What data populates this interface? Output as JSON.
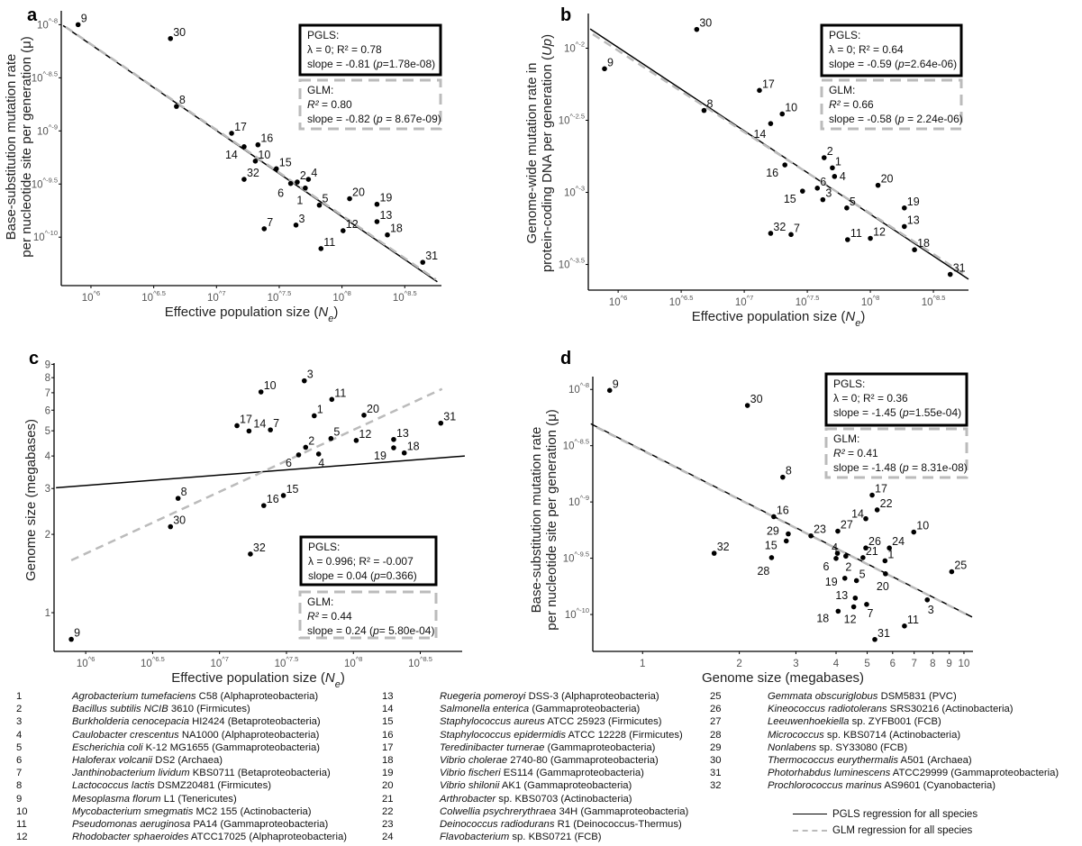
{
  "colors": {
    "pgls": "#000000",
    "glm": "#bbbbbb",
    "points": "#000000"
  },
  "chart_data": [
    {
      "panel": "a",
      "type": "scatter",
      "x_scale": "log",
      "y_scale": "log",
      "xlabel": {
        "pre": "Effective population size (",
        "var": "N",
        "sub": "e",
        "post": ")"
      },
      "ylabel": [
        {
          "pre": "Base-substitution mutation rate"
        },
        {
          "pre": "per nucleotide site per generation (μ)"
        }
      ],
      "xlim": [
        580000.0,
        620000000.0
      ],
      "ylim": [
        3.5e-11,
        1.35e-08
      ],
      "x_ticks": [
        "10^6",
        "10^6.5",
        "10^7",
        "10^7.5",
        "10^8",
        "10^8.5"
      ],
      "y_ticks": [
        "10^-8",
        "10^-8.5",
        "10^-9",
        "10^-9.5",
        "10^-10"
      ],
      "points": [
        {
          "id": "9",
          "x": 790000.0,
          "y": 1e-08
        },
        {
          "id": "30",
          "x": 4300000.0,
          "y": 7.4e-09
        },
        {
          "id": "8",
          "x": 4800000.0,
          "y": 1.7e-09
        },
        {
          "id": "17",
          "x": 13200000.0,
          "y": 9.5e-10
        },
        {
          "id": "14",
          "x": 16600000.0,
          "y": 7.1e-10
        },
        {
          "id": "16",
          "x": 21400000.0,
          "y": 7.4e-10
        },
        {
          "id": "10",
          "x": 20400000.0,
          "y": 5.2e-10
        },
        {
          "id": "15",
          "x": 30000000.0,
          "y": 4.4e-10
        },
        {
          "id": "32",
          "x": 16600000.0,
          "y": 3.5e-10
        },
        {
          "id": "2",
          "x": 44000000.0,
          "y": 3.3e-10
        },
        {
          "id": "4",
          "x": 54000000.0,
          "y": 3.5e-10
        },
        {
          "id": "6",
          "x": 39000000.0,
          "y": 3.2e-10
        },
        {
          "id": "1",
          "x": 51000000.0,
          "y": 2.9e-10
        },
        {
          "id": "5",
          "x": 66000000.0,
          "y": 2e-10
        },
        {
          "id": "20",
          "x": 115000000.0,
          "y": 2.3e-10
        },
        {
          "id": "19",
          "x": 190000000.0,
          "y": 2.04e-10
        },
        {
          "id": "3",
          "x": 43000000.0,
          "y": 1.3e-10
        },
        {
          "id": "7",
          "x": 24000000.0,
          "y": 1.2e-10
        },
        {
          "id": "13",
          "x": 190000000.0,
          "y": 1.4e-10
        },
        {
          "id": "12",
          "x": 102000000.0,
          "y": 1.15e-10
        },
        {
          "id": "18",
          "x": 230000000.0,
          "y": 1.05e-10
        },
        {
          "id": "11",
          "x": 68000000.0,
          "y": 7.8e-11
        },
        {
          "id": "31",
          "x": 440000000.0,
          "y": 5.8e-11
        }
      ],
      "regressions": {
        "pgls": {
          "x": [
            600000.0,
            575000000.0
          ],
          "y": [
            9.8e-09,
            3.8e-11
          ]
        },
        "glm": {
          "x": [
            630000.0,
            560000000.0
          ],
          "y": [
            9.5e-09,
            4e-11
          ]
        }
      },
      "stats": {
        "pgls": {
          "title": "PGLS:",
          "line1": "λ = 0; R² = 0.78",
          "slope_pre": "slope = -0.81 (",
          "p": "p",
          "slope_post": "=1.78e-08)"
        },
        "glm": {
          "title": "GLM:",
          "r2": "R²",
          "r2_val": " = 0.80",
          "slope_pre": "slope = -0.82 (",
          "p": "p",
          "slope_post": " = 8.67e-09)"
        }
      }
    },
    {
      "panel": "b",
      "type": "scatter",
      "x_scale": "log",
      "y_scale": "log",
      "xlabel": {
        "pre": "Effective population size (",
        "var": "N",
        "sub": "e",
        "post": ")"
      },
      "ylabel": [
        {
          "pre": "Genome-wide mutation rate in"
        },
        {
          "pre": "protein-coding DNA per generation (",
          "var": "Up",
          "post": ")"
        }
      ],
      "xlim": [
        580000.0,
        600000000.0
      ],
      "ylim": [
        0.00021,
        0.0174
      ],
      "x_ticks": [
        "10^6",
        "10^6.5",
        "10^7",
        "10^7.5",
        "10^8",
        "10^8.5"
      ],
      "y_ticks": [
        "10^-2",
        "10^-2.5",
        "10^-3",
        "10^-3.5"
      ],
      "points": [
        {
          "id": "9",
          "x": 780000.0,
          "y": 0.0072
        },
        {
          "id": "30",
          "x": 4200000.0,
          "y": 0.0135
        },
        {
          "id": "17",
          "x": 13200000.0,
          "y": 0.0051
        },
        {
          "id": "8",
          "x": 4800000.0,
          "y": 0.0037
        },
        {
          "id": "10",
          "x": 20000000.0,
          "y": 0.0035
        },
        {
          "id": "14",
          "x": 16200000.0,
          "y": 0.003
        },
        {
          "id": "2",
          "x": 43000000.0,
          "y": 0.00174
        },
        {
          "id": "16",
          "x": 21000000.0,
          "y": 0.00155
        },
        {
          "id": "1",
          "x": 50000000.0,
          "y": 0.00148
        },
        {
          "id": "4",
          "x": 52000000.0,
          "y": 0.00129
        },
        {
          "id": "20",
          "x": 115000000.0,
          "y": 0.00112
        },
        {
          "id": "6",
          "x": 38000000.0,
          "y": 0.00107
        },
        {
          "id": "15",
          "x": 29000000.0,
          "y": 0.00102
        },
        {
          "id": "3",
          "x": 42000000.0,
          "y": 0.00089
        },
        {
          "id": "5",
          "x": 65000000.0,
          "y": 0.00078
        },
        {
          "id": "19",
          "x": 186000000.0,
          "y": 0.00078
        },
        {
          "id": "13",
          "x": 186000000.0,
          "y": 0.00058
        },
        {
          "id": "32",
          "x": 16200000.0,
          "y": 0.00052
        },
        {
          "id": "7",
          "x": 23500000.0,
          "y": 0.00051
        },
        {
          "id": "11",
          "x": 66000000.0,
          "y": 0.00047
        },
        {
          "id": "12",
          "x": 100000000.0,
          "y": 0.00048
        },
        {
          "id": "18",
          "x": 224000000.0,
          "y": 0.0004
        },
        {
          "id": "31",
          "x": 430000000.0,
          "y": 0.00027
        }
      ],
      "regressions": {
        "pgls": {
          "x": [
            600000.0,
            600000000.0
          ],
          "y": [
            0.0136,
            0.00025
          ]
        },
        "glm": {
          "x": [
            630000.0,
            560000000.0
          ],
          "y": [
            0.0125,
            0.00027
          ]
        }
      },
      "stats": {
        "pgls": {
          "title": "PGLS:",
          "line1": "λ = 0; R² = 0.64",
          "slope_pre": "slope = -0.59 (",
          "p": "p",
          "slope_post": "=2.64e-06)"
        },
        "glm": {
          "title": "GLM:",
          "r2": "R²",
          "r2_val": " = 0.66",
          "slope_pre": "slope = -0.58 (",
          "p": "p",
          "slope_post": " = 2.24e-06)"
        }
      }
    },
    {
      "panel": "c",
      "type": "scatter",
      "x_scale": "log",
      "y_scale": "log",
      "xlabel": {
        "pre": "Effective population size (",
        "var": "N",
        "sub": "e",
        "post": ")"
      },
      "ylabel": [
        {
          "pre": "Genome size (megabases)"
        }
      ],
      "xlim": [
        580000.0,
        650000000.0
      ],
      "ylim": [
        0.71,
        9.1
      ],
      "x_ticks": [
        "10^6",
        "10^6.5",
        "10^7",
        "10^7.5",
        "10^8",
        "10^8.5"
      ],
      "y_ticks": [
        "1",
        "2",
        "3",
        "4",
        "5",
        "6",
        "7",
        "8",
        "9"
      ],
      "points": [
        {
          "id": "9",
          "x": 780000.0,
          "y": 0.79
        },
        {
          "id": "30",
          "x": 4300000.0,
          "y": 2.14
        },
        {
          "id": "8",
          "x": 4900000.0,
          "y": 2.75
        },
        {
          "id": "32",
          "x": 17000000.0,
          "y": 1.68
        },
        {
          "id": "16",
          "x": 21400000.0,
          "y": 2.58
        },
        {
          "id": "15",
          "x": 30000000.0,
          "y": 2.82
        },
        {
          "id": "17",
          "x": 13500000.0,
          "y": 5.23
        },
        {
          "id": "14",
          "x": 16600000.0,
          "y": 4.99
        },
        {
          "id": "7",
          "x": 24000000.0,
          "y": 5.04
        },
        {
          "id": "10",
          "x": 20400000.0,
          "y": 7.05
        },
        {
          "id": "3",
          "x": 43000000.0,
          "y": 7.78
        },
        {
          "id": "11",
          "x": 69000000.0,
          "y": 6.6
        },
        {
          "id": "1",
          "x": 51000000.0,
          "y": 5.71
        },
        {
          "id": "20",
          "x": 120000000.0,
          "y": 5.74
        },
        {
          "id": "31",
          "x": 450000000.0,
          "y": 5.35
        },
        {
          "id": "5",
          "x": 68000000.0,
          "y": 4.67
        },
        {
          "id": "12",
          "x": 105000000.0,
          "y": 4.59
        },
        {
          "id": "13",
          "x": 200000000.0,
          "y": 4.63
        },
        {
          "id": "19",
          "x": 200000000.0,
          "y": 4.3
        },
        {
          "id": "18",
          "x": 240000000.0,
          "y": 4.11
        },
        {
          "id": "2",
          "x": 44000000.0,
          "y": 4.32
        },
        {
          "id": "4",
          "x": 55000000.0,
          "y": 4.07
        },
        {
          "id": "6",
          "x": 39000000.0,
          "y": 4.04
        }
      ],
      "regressions": {
        "pgls": {
          "x": [
            600000.0,
            680000000.0
          ],
          "y": [
            3.02,
            4.0
          ]
        },
        "glm": {
          "x": [
            780000.0,
            460000000.0
          ],
          "y": [
            1.59,
            7.24
          ]
        }
      },
      "stats": {
        "pgls": {
          "title": "PGLS:",
          "line1": "λ = 0.996; R² = -0.007",
          "slope_pre": "slope = 0.04  (",
          "p": "p",
          "slope_post": "=0.366)"
        },
        "glm": {
          "title": "GLM:",
          "r2": "R²",
          "r2_val": " = 0.44",
          "slope_pre": "slope = 0.24  (",
          "p": "p",
          "slope_post": "= 5.80e-04)"
        }
      }
    },
    {
      "panel": "d",
      "type": "scatter",
      "x_scale": "log",
      "y_scale": "log",
      "xlabel": {
        "pre": "Genome size (megabases)"
      },
      "ylabel": [
        {
          "pre": "Base-substitution mutation rate"
        },
        {
          "pre": "per nucleotide site per generation (μ)"
        }
      ],
      "xlim": [
        0.7,
        10.67
      ],
      "ylim": [
        4.7e-11,
        1.3e-08
      ],
      "x_ticks": [
        "1",
        "2",
        "3",
        "4",
        "5",
        "6",
        "7",
        "8",
        "9",
        "10"
      ],
      "y_ticks": [
        "10^-8",
        "10^-8.5",
        "10^-9",
        "10^-9.5",
        "10^-10"
      ],
      "points": [
        {
          "id": "9",
          "x": 0.79,
          "y": 9.8e-09
        },
        {
          "id": "30",
          "x": 2.12,
          "y": 7.2e-09
        },
        {
          "id": "8",
          "x": 2.73,
          "y": 1.66e-09
        },
        {
          "id": "17",
          "x": 5.18,
          "y": 1.15e-09
        },
        {
          "id": "22",
          "x": 5.37,
          "y": 8.5e-10
        },
        {
          "id": "14",
          "x": 4.95,
          "y": 7.1e-10
        },
        {
          "id": "16",
          "x": 2.56,
          "y": 7.4e-10
        },
        {
          "id": "29",
          "x": 2.84,
          "y": 5.2e-10
        },
        {
          "id": "23",
          "x": 3.34,
          "y": 5e-10
        },
        {
          "id": "27",
          "x": 4.05,
          "y": 5.5e-10
        },
        {
          "id": "10",
          "x": 6.98,
          "y": 5.4e-10
        },
        {
          "id": "15",
          "x": 2.8,
          "y": 4.5e-10
        },
        {
          "id": "26",
          "x": 4.95,
          "y": 3.9e-10
        },
        {
          "id": "24",
          "x": 5.86,
          "y": 3.9e-10
        },
        {
          "id": "32",
          "x": 1.67,
          "y": 3.5e-10
        },
        {
          "id": "4",
          "x": 4.04,
          "y": 3.5e-10
        },
        {
          "id": "28",
          "x": 2.52,
          "y": 3.2e-10
        },
        {
          "id": "6",
          "x": 4.0,
          "y": 3.15e-10
        },
        {
          "id": "2",
          "x": 4.29,
          "y": 3.3e-10
        },
        {
          "id": "21",
          "x": 4.85,
          "y": 3.2e-10
        },
        {
          "id": "1",
          "x": 5.68,
          "y": 3e-10
        },
        {
          "id": "25",
          "x": 9.16,
          "y": 2.4e-10
        },
        {
          "id": "20",
          "x": 5.7,
          "y": 2.3e-10
        },
        {
          "id": "19",
          "x": 4.26,
          "y": 2.1e-10
        },
        {
          "id": "5",
          "x": 4.63,
          "y": 2e-10
        },
        {
          "id": "13",
          "x": 4.59,
          "y": 1.4e-10
        },
        {
          "id": "7",
          "x": 4.98,
          "y": 1.23e-10
        },
        {
          "id": "12",
          "x": 4.54,
          "y": 1.17e-10
        },
        {
          "id": "3",
          "x": 7.69,
          "y": 1.35e-10
        },
        {
          "id": "18",
          "x": 4.06,
          "y": 1.07e-10
        },
        {
          "id": "11",
          "x": 6.53,
          "y": 7.9e-11
        },
        {
          "id": "31",
          "x": 5.28,
          "y": 6e-11
        }
      ],
      "regressions": {
        "pgls": {
          "x": [
            0.69,
            10.6
          ],
          "y": [
            4.95e-09,
            9.5e-11
          ]
        },
        "glm": {
          "x": [
            0.72,
            10.2
          ],
          "y": [
            4.6e-09,
            1e-10
          ]
        }
      },
      "stats": {
        "pgls": {
          "title": "PGLS:",
          "line1": "λ = 0; R² = 0.36",
          "slope_pre": "slope = -1.45 (",
          "p": "p",
          "slope_post": "=1.55e-04)"
        },
        "glm": {
          "title": "GLM:",
          "r2": "R²",
          "r2_val": " = 0.41",
          "slope_pre": "slope = -1.48 (",
          "p": "p",
          "slope_post": " = 8.31e-08)"
        }
      }
    }
  ],
  "species": [
    {
      "num": "1",
      "italic": "Agrobacterium tumefaciens",
      "rest": " C58 (Alphaproteobacteria)"
    },
    {
      "num": "2",
      "italic": "Bacillus subtilis NCIB",
      "rest": " 3610 (Firmicutes)"
    },
    {
      "num": "3",
      "italic": "Burkholderia cenocepacia",
      "rest": " HI2424 (Betaproteobacteria)"
    },
    {
      "num": "4",
      "italic": "Caulobacter crescentus",
      "rest": " NA1000 (Alphaproteobacteria)"
    },
    {
      "num": "5",
      "italic": "Escherichia coli",
      "rest": " K-12 MG1655 (Gammaproteobacteria)"
    },
    {
      "num": "6",
      "italic": "Haloferax volcanii",
      "rest": " DS2 (Archaea)"
    },
    {
      "num": "7",
      "italic": "Janthinobacterium lividum",
      "rest": " KBS0711 (Betaproteobacteria)"
    },
    {
      "num": "8",
      "italic": "Lactococcus lactis",
      "rest": " DSMZ20481 (Firmicutes)"
    },
    {
      "num": "9",
      "italic": "Mesoplasma florum",
      "rest": " L1 (Tenericutes)"
    },
    {
      "num": "10",
      "italic": "Mycobacterium smegmatis",
      "rest": " MC2 155 (Actinobacteria)"
    },
    {
      "num": "11",
      "italic": "Pseudomonas aeruginosa",
      "rest": " PA14 (Gammaproteobacteria)"
    },
    {
      "num": "12",
      "italic": "Rhodobacter sphaeroides",
      "rest": " ATCC17025 (Alphaproteobacteria)"
    },
    {
      "num": "13",
      "italic": "Ruegeria pomeroyi",
      "rest": " DSS-3 (Alphaproteobacteria)"
    },
    {
      "num": "14",
      "italic": "Salmonella enterica",
      "rest": " (Gammaproteobacteria)"
    },
    {
      "num": "15",
      "italic": "Staphylococcus aureus",
      "rest": " ATCC 25923 (Firmicutes)"
    },
    {
      "num": "16",
      "italic": "Staphylococcus epidermidis",
      "rest": " ATCC 12228 (Firmicutes)"
    },
    {
      "num": "17",
      "italic": "Teredinibacter turnerae",
      "rest": " (Gammaproteobacteria)"
    },
    {
      "num": "18",
      "italic": "Vibrio cholerae",
      "rest": " 2740-80 (Gammaproteobacteria)"
    },
    {
      "num": "19",
      "italic": "Vibrio fischeri",
      "rest": " ES114 (Gammaproteobacteria)"
    },
    {
      "num": "20",
      "italic": "Vibrio shilonii",
      "rest": " AK1 (Gammaproteobacteria)"
    },
    {
      "num": "21",
      "italic": "Arthrobacter",
      "rest": " sp. KBS0703 (Actinobacteria)"
    },
    {
      "num": "22",
      "italic": "Colwellia psychrerythraea",
      "rest": " 34H (Gammaproteobacteria)"
    },
    {
      "num": "23",
      "italic": "Deinococcus radiodurans",
      "rest": " R1 (Deinococcus-Thermus)"
    },
    {
      "num": "24",
      "italic": "Flavobacterium",
      "rest": " sp. KBS0721 (FCB)"
    },
    {
      "num": "25",
      "italic": "Gemmata obscuriglobus",
      "rest": " DSM5831 (PVC)"
    },
    {
      "num": "26",
      "italic": "Kineococcus radiotolerans",
      "rest": " SRS30216 (Actinobacteria)"
    },
    {
      "num": "27",
      "italic": "Leeuwenhoekiella",
      "rest": " sp. ZYFB001 (FCB)"
    },
    {
      "num": "28",
      "italic": "Micrococcus",
      "rest": " sp. KBS0714 (Actinobacteria)"
    },
    {
      "num": "29",
      "italic": "Nonlabens",
      "rest": " sp. SY33080 (FCB)"
    },
    {
      "num": "30",
      "italic": "Thermococcus eurythermalis",
      "rest": " A501 (Archaea)"
    },
    {
      "num": "31",
      "italic": "Photorhabdus luminescens",
      "rest": " ATCC29999  (Gammaproteobacteria)"
    },
    {
      "num": "32",
      "italic": "Prochlorococcus marinus",
      "rest": " AS9601 (Cyanobacteria)"
    }
  ],
  "line_key": {
    "pgls": "PGLS regression for all species",
    "glm": "GLM regression for all species"
  }
}
